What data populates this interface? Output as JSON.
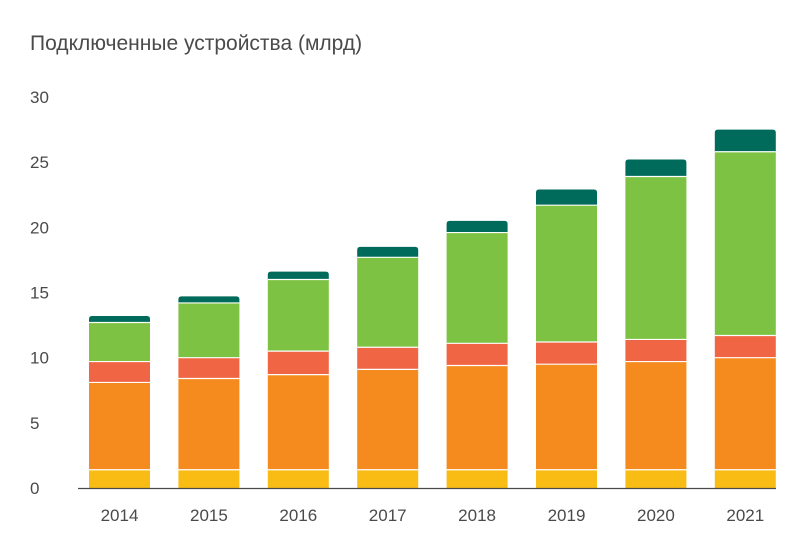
{
  "chart_data": {
    "type": "bar",
    "stacked": true,
    "title": "Подключенные устройства (млрд)",
    "xlabel": "",
    "ylabel": "",
    "ylim": [
      0,
      30
    ],
    "yticks": [
      0,
      5,
      10,
      15,
      20,
      25,
      30
    ],
    "categories": [
      "2014",
      "2015",
      "2016",
      "2017",
      "2018",
      "2019",
      "2020",
      "2021"
    ],
    "grid": false,
    "legend": "none",
    "series": [
      {
        "color": "#f9bc15",
        "values": [
          1.4,
          1.4,
          1.4,
          1.4,
          1.4,
          1.4,
          1.4,
          1.4
        ]
      },
      {
        "color": "#f58b1f",
        "values": [
          6.7,
          7.0,
          7.3,
          7.7,
          8.0,
          8.1,
          8.3,
          8.6
        ]
      },
      {
        "color": "#f06543",
        "values": [
          1.6,
          1.6,
          1.8,
          1.7,
          1.7,
          1.7,
          1.7,
          1.7
        ]
      },
      {
        "color": "#7dc242",
        "values": [
          3.0,
          4.2,
          5.5,
          6.9,
          8.5,
          10.5,
          12.5,
          14.1
        ]
      },
      {
        "color": "#006b5a",
        "values": [
          0.5,
          0.5,
          0.6,
          0.8,
          0.9,
          1.2,
          1.3,
          1.7
        ]
      }
    ]
  }
}
